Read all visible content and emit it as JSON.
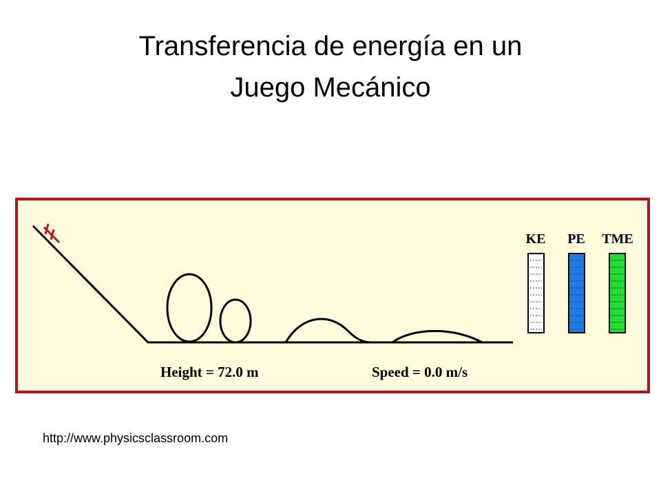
{
  "title": [
    "Transferencia de energía en un",
    "Juego Mecánico"
  ],
  "simulation": {
    "meters": [
      "KE",
      "PE",
      "TME"
    ],
    "height_label": "Height = 72.0 m",
    "speed_label": "Speed = 0.0 m/s"
  },
  "source": "http://www.physicsclassroom.com"
}
